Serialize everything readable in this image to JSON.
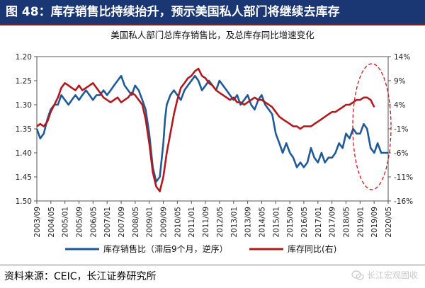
{
  "header": {
    "figure_label": "图 48：库存销售比持续抬升，预示美国私人部门将继续去库存"
  },
  "chart_data": {
    "type": "line",
    "title": "美国私人部门总库存销售比，及总库存同比增速变化",
    "x_tick_labels": [
      "2003/09",
      "2004/05",
      "2005/01",
      "2005/09",
      "2006/05",
      "2007/01",
      "2007/09",
      "2008/05",
      "2009/01",
      "2009/09",
      "2010/05",
      "2011/01",
      "2011/09",
      "2012/05",
      "2013/01",
      "2013/09",
      "2014/05",
      "2015/01",
      "2015/09",
      "2016/05",
      "2017/01",
      "2017/09",
      "2018/05",
      "2019/01",
      "2019/09",
      "2020/05"
    ],
    "y_left": {
      "ticks": [
        "1.20",
        "1.25",
        "1.30",
        "1.35",
        "1.40",
        "1.45",
        "1.50"
      ],
      "min": 1.2,
      "max": 1.5,
      "inverted": true
    },
    "y_right": {
      "ticks": [
        "14%",
        "9%",
        "4%",
        "-1%",
        "-6%",
        "-11%",
        "-16%"
      ],
      "min": -16,
      "max": 14
    },
    "series": [
      {
        "name": "库存销售比（滞后9个月，逆序）",
        "axis": "left",
        "color": "#1f5a96",
        "x": [
          2003.67,
          2003.83,
          2004.0,
          2004.17,
          2004.33,
          2004.5,
          2004.67,
          2004.83,
          2005.0,
          2005.17,
          2005.33,
          2005.5,
          2005.67,
          2005.83,
          2006.0,
          2006.17,
          2006.33,
          2006.5,
          2006.67,
          2006.83,
          2007.0,
          2007.17,
          2007.33,
          2007.5,
          2007.67,
          2007.83,
          2008.0,
          2008.17,
          2008.33,
          2008.5,
          2008.67,
          2008.83,
          2009.0,
          2009.17,
          2009.33,
          2009.5,
          2009.67,
          2009.75,
          2009.83,
          2010.0,
          2010.17,
          2010.33,
          2010.5,
          2010.67,
          2010.83,
          2011.0,
          2011.17,
          2011.33,
          2011.5,
          2011.67,
          2011.83,
          2012.0,
          2012.17,
          2012.33,
          2012.5,
          2012.67,
          2012.83,
          2013.0,
          2013.17,
          2013.33,
          2013.5,
          2013.67,
          2013.83,
          2014.0,
          2014.17,
          2014.33,
          2014.5,
          2014.67,
          2014.83,
          2015.0,
          2015.17,
          2015.33,
          2015.5,
          2015.67,
          2015.83,
          2016.0,
          2016.17,
          2016.33,
          2016.5,
          2016.67,
          2016.83,
          2017.0,
          2017.17,
          2017.33,
          2017.5,
          2017.67,
          2017.83,
          2018.0,
          2018.17,
          2018.33,
          2018.5,
          2018.67,
          2018.83,
          2019.0,
          2019.17,
          2019.33,
          2019.5,
          2019.67,
          2019.83,
          2020.0,
          2020.17,
          2020.33
        ],
        "y": [
          1.35,
          1.37,
          1.36,
          1.33,
          1.31,
          1.3,
          1.3,
          1.28,
          1.29,
          1.3,
          1.29,
          1.28,
          1.29,
          1.28,
          1.27,
          1.28,
          1.29,
          1.28,
          1.28,
          1.27,
          1.28,
          1.27,
          1.26,
          1.25,
          1.24,
          1.26,
          1.27,
          1.28,
          1.26,
          1.27,
          1.29,
          1.31,
          1.36,
          1.43,
          1.46,
          1.45,
          1.38,
          1.33,
          1.3,
          1.28,
          1.27,
          1.28,
          1.29,
          1.27,
          1.26,
          1.25,
          1.24,
          1.25,
          1.27,
          1.26,
          1.25,
          1.26,
          1.27,
          1.25,
          1.26,
          1.27,
          1.28,
          1.29,
          1.28,
          1.3,
          1.29,
          1.28,
          1.3,
          1.31,
          1.29,
          1.28,
          1.3,
          1.31,
          1.32,
          1.36,
          1.38,
          1.4,
          1.38,
          1.4,
          1.41,
          1.43,
          1.42,
          1.43,
          1.42,
          1.39,
          1.41,
          1.42,
          1.4,
          1.42,
          1.41,
          1.41,
          1.4,
          1.38,
          1.39,
          1.36,
          1.37,
          1.35,
          1.36,
          1.36,
          1.34,
          1.35,
          1.39,
          1.4,
          1.38,
          1.4,
          1.4,
          1.4
        ]
      },
      {
        "name": "库存同比(右)",
        "axis": "right",
        "color": "#b0191e",
        "x": [
          2003.67,
          2003.83,
          2004.0,
          2004.17,
          2004.33,
          2004.5,
          2004.67,
          2004.83,
          2005.0,
          2005.17,
          2005.33,
          2005.5,
          2005.67,
          2005.83,
          2006.0,
          2006.17,
          2006.33,
          2006.5,
          2006.67,
          2006.83,
          2007.0,
          2007.17,
          2007.33,
          2007.5,
          2007.67,
          2007.83,
          2008.0,
          2008.17,
          2008.33,
          2008.5,
          2008.67,
          2008.83,
          2009.0,
          2009.17,
          2009.33,
          2009.5,
          2009.67,
          2009.83,
          2010.0,
          2010.17,
          2010.33,
          2010.5,
          2010.67,
          2010.83,
          2011.0,
          2011.17,
          2011.33,
          2011.5,
          2011.67,
          2011.83,
          2012.0,
          2012.17,
          2012.33,
          2012.5,
          2012.67,
          2012.83,
          2013.0,
          2013.17,
          2013.33,
          2013.5,
          2013.67,
          2013.83,
          2014.0,
          2014.17,
          2014.33,
          2014.5,
          2014.67,
          2014.83,
          2015.0,
          2015.17,
          2015.33,
          2015.5,
          2015.67,
          2015.83,
          2016.0,
          2016.17,
          2016.33,
          2016.5,
          2016.67,
          2016.83,
          2017.0,
          2017.17,
          2017.33,
          2017.5,
          2017.67,
          2017.83,
          2018.0,
          2018.17,
          2018.33,
          2018.5,
          2018.67,
          2018.83,
          2019.0,
          2019.17,
          2019.33,
          2019.5,
          2019.67
        ],
        "y": [
          -0.5,
          0.0,
          -0.5,
          0.5,
          2.5,
          4.0,
          5.5,
          7.5,
          8.5,
          8.0,
          7.5,
          7.0,
          8.0,
          7.0,
          7.5,
          8.0,
          8.5,
          7.5,
          6.5,
          5.5,
          5.0,
          4.5,
          5.0,
          5.5,
          4.5,
          5.0,
          5.5,
          6.5,
          6.0,
          5.0,
          4.0,
          1.0,
          -4.0,
          -10.0,
          -13.0,
          -14.0,
          -11.0,
          -6.0,
          -2.0,
          2.0,
          5.0,
          7.5,
          8.5,
          9.5,
          10.0,
          11.0,
          11.5,
          10.0,
          9.5,
          8.5,
          8.0,
          7.0,
          6.5,
          6.0,
          5.5,
          5.0,
          5.5,
          4.5,
          4.5,
          4.0,
          4.5,
          5.0,
          5.5,
          5.0,
          5.0,
          4.5,
          4.0,
          3.5,
          2.5,
          1.5,
          1.0,
          0.5,
          0.0,
          -0.5,
          -0.5,
          -1.0,
          -0.5,
          -0.5,
          -0.5,
          0.0,
          0.5,
          1.0,
          1.5,
          2.0,
          2.5,
          2.5,
          3.0,
          3.5,
          4.0,
          4.0,
          4.5,
          5.0,
          5.0,
          5.5,
          5.5,
          5.0,
          3.5
        ]
      }
    ],
    "legend_position": "bottom",
    "annotation": "red dashed ellipse highlighting 2019–2020 period"
  },
  "footer": {
    "source": "资料来源：CEIC，长江证券研究所",
    "watermark": "长江宏观固收"
  }
}
